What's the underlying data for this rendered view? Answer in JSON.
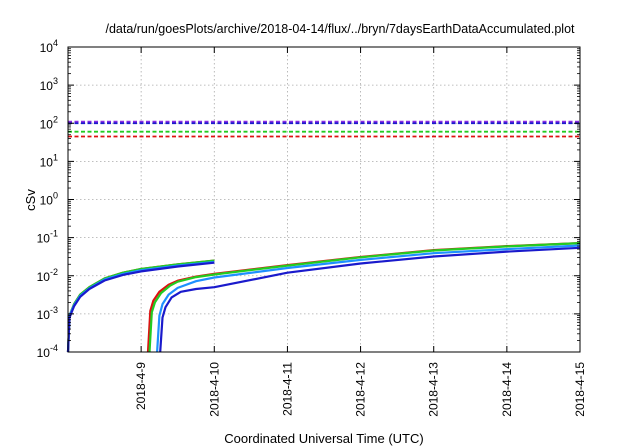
{
  "chart_data": {
    "type": "line",
    "title": "/data/run/goesPlots/archive/2018-04-14/flux/../bryn/7daysEarthDataAccumulated.plot",
    "xlabel": "Coordinated Universal Time (UTC)",
    "ylabel": "cSv",
    "y_scale": "log",
    "ylim": [
      0.0001,
      10000
    ],
    "xlim": [
      "2018-04-08",
      "2018-04-15"
    ],
    "grid": true,
    "x_ticks": [
      {
        "date": "2018-04-09",
        "label": "2018-4-9"
      },
      {
        "date": "2018-04-10",
        "label": "2018-4-10"
      },
      {
        "date": "2018-04-11",
        "label": "2018-4-11"
      },
      {
        "date": "2018-04-12",
        "label": "2018-4-12"
      },
      {
        "date": "2018-04-13",
        "label": "2018-4-13"
      },
      {
        "date": "2018-04-14",
        "label": "2018-4-14"
      },
      {
        "date": "2018-04-15",
        "label": "2018-4-15"
      }
    ],
    "y_ticks": [
      {
        "value": 0.0001,
        "base": "10",
        "exp": "-4"
      },
      {
        "value": 0.001,
        "base": "10",
        "exp": "-3"
      },
      {
        "value": 0.01,
        "base": "10",
        "exp": "-2"
      },
      {
        "value": 0.1,
        "base": "10",
        "exp": "-1"
      },
      {
        "value": 1,
        "base": "10",
        "exp": "0"
      },
      {
        "value": 10,
        "base": "10",
        "exp": "1"
      },
      {
        "value": 100,
        "base": "10",
        "exp": "2"
      },
      {
        "value": 1000,
        "base": "10",
        "exp": "3"
      },
      {
        "value": 10000,
        "base": "10",
        "exp": "4"
      }
    ],
    "thresholds": [
      {
        "value": 110,
        "color": "#8a2be2"
      },
      {
        "value": 100,
        "color": "#1a1acc"
      },
      {
        "value": 60,
        "color": "#22cc22"
      },
      {
        "value": 45,
        "color": "#dd1111"
      }
    ],
    "series": [
      {
        "color": "#dd1111",
        "segments": [
          [
            [
              "2018-04-08T00:00",
              0.0001
            ],
            [
              "2018-04-08T00:30",
              0.0009
            ],
            [
              "2018-04-08T02:00",
              0.0018
            ],
            [
              "2018-04-08T04:00",
              0.0032
            ],
            [
              "2018-04-08T07:00",
              0.005
            ],
            [
              "2018-04-08T12:00",
              0.0085
            ],
            [
              "2018-04-08T18:00",
              0.012
            ],
            [
              "2018-04-09T00:00",
              0.015
            ],
            [
              "2018-04-09T12:00",
              0.02
            ],
            [
              "2018-04-10T00:00",
              0.025
            ]
          ],
          [
            [
              "2018-04-09T02:15",
              0.0001
            ],
            [
              "2018-04-09T03:00",
              0.0012
            ],
            [
              "2018-04-09T04:00",
              0.0022
            ],
            [
              "2018-04-09T06:00",
              0.0038
            ],
            [
              "2018-04-09T09:00",
              0.0058
            ],
            [
              "2018-04-09T12:00",
              0.0074
            ],
            [
              "2018-04-09T18:00",
              0.0095
            ],
            [
              "2018-04-10T00:00",
              0.0112
            ],
            [
              "2018-04-11T00:00",
              0.019
            ],
            [
              "2018-04-12T00:00",
              0.031
            ],
            [
              "2018-04-13T00:00",
              0.047
            ],
            [
              "2018-04-14T00:00",
              0.06
            ],
            [
              "2018-04-15T00:00",
              0.072
            ]
          ]
        ]
      },
      {
        "color": "#22cc22",
        "segments": [
          [
            [
              "2018-04-08T00:00",
              0.0001
            ],
            [
              "2018-04-08T00:30",
              0.0009
            ],
            [
              "2018-04-08T02:00",
              0.0018
            ],
            [
              "2018-04-08T04:00",
              0.0032
            ],
            [
              "2018-04-08T07:00",
              0.005
            ],
            [
              "2018-04-08T12:00",
              0.0085
            ],
            [
              "2018-04-08T18:00",
              0.012
            ],
            [
              "2018-04-09T00:00",
              0.015
            ],
            [
              "2018-04-09T12:00",
              0.02
            ],
            [
              "2018-04-10T00:00",
              0.025
            ]
          ],
          [
            [
              "2018-04-09T02:45",
              0.0001
            ],
            [
              "2018-04-09T03:30",
              0.0011
            ],
            [
              "2018-04-09T04:30",
              0.002
            ],
            [
              "2018-04-09T06:30",
              0.0035
            ],
            [
              "2018-04-09T09:30",
              0.0055
            ],
            [
              "2018-04-09T12:00",
              0.007
            ],
            [
              "2018-04-09T18:00",
              0.0092
            ],
            [
              "2018-04-10T00:00",
              0.0108
            ],
            [
              "2018-04-11T00:00",
              0.0185
            ],
            [
              "2018-04-12T00:00",
              0.0305
            ],
            [
              "2018-04-13T00:00",
              0.046
            ],
            [
              "2018-04-14T00:00",
              0.059
            ],
            [
              "2018-04-15T00:00",
              0.072
            ]
          ]
        ]
      },
      {
        "color": "#1e90ff",
        "segments": [
          [
            [
              "2018-04-08T00:00",
              0.0001
            ],
            [
              "2018-04-08T00:30",
              0.0009
            ],
            [
              "2018-04-08T02:00",
              0.0017
            ],
            [
              "2018-04-08T04:00",
              0.003
            ],
            [
              "2018-04-08T07:00",
              0.0047
            ],
            [
              "2018-04-08T12:00",
              0.008
            ],
            [
              "2018-04-08T18:00",
              0.0112
            ],
            [
              "2018-04-09T00:00",
              0.014
            ],
            [
              "2018-04-09T12:00",
              0.0185
            ],
            [
              "2018-04-10T00:00",
              0.023
            ]
          ],
          [
            [
              "2018-04-09T05:15",
              0.0001
            ],
            [
              "2018-04-09T06:00",
              0.0009
            ],
            [
              "2018-04-09T07:00",
              0.0018
            ],
            [
              "2018-04-09T09:00",
              0.0032
            ],
            [
              "2018-04-09T12:00",
              0.0048
            ],
            [
              "2018-04-09T18:00",
              0.0072
            ],
            [
              "2018-04-10T00:00",
              0.009
            ],
            [
              "2018-04-11T00:00",
              0.016
            ],
            [
              "2018-04-12T00:00",
              0.026
            ],
            [
              "2018-04-13T00:00",
              0.039
            ],
            [
              "2018-04-14T00:00",
              0.05
            ],
            [
              "2018-04-15T00:00",
              0.062
            ]
          ]
        ]
      },
      {
        "color": "#1a1acc",
        "segments": [
          [
            [
              "2018-04-08T00:00",
              0.0001
            ],
            [
              "2018-04-08T00:30",
              0.0008
            ],
            [
              "2018-04-08T02:00",
              0.0016
            ],
            [
              "2018-04-08T04:00",
              0.0028
            ],
            [
              "2018-04-08T07:00",
              0.0045
            ],
            [
              "2018-04-08T12:00",
              0.0075
            ],
            [
              "2018-04-08T18:00",
              0.0105
            ],
            [
              "2018-04-09T00:00",
              0.013
            ],
            [
              "2018-04-09T12:00",
              0.0175
            ],
            [
              "2018-04-10T00:00",
              0.022
            ]
          ],
          [
            [
              "2018-04-09T06:15",
              0.0001
            ],
            [
              "2018-04-09T07:00",
              0.0008
            ],
            [
              "2018-04-09T08:00",
              0.0015
            ],
            [
              "2018-04-09T10:00",
              0.0027
            ],
            [
              "2018-04-09T13:00",
              0.0038
            ],
            [
              "2018-04-09T18:00",
              0.0045
            ],
            [
              "2018-04-10T00:00",
              0.005
            ],
            [
              "2018-04-11T00:00",
              0.012
            ],
            [
              "2018-04-12T00:00",
              0.021
            ],
            [
              "2018-04-13T00:00",
              0.032
            ],
            [
              "2018-04-14T00:00",
              0.043
            ],
            [
              "2018-04-15T00:00",
              0.054
            ]
          ]
        ]
      }
    ]
  }
}
